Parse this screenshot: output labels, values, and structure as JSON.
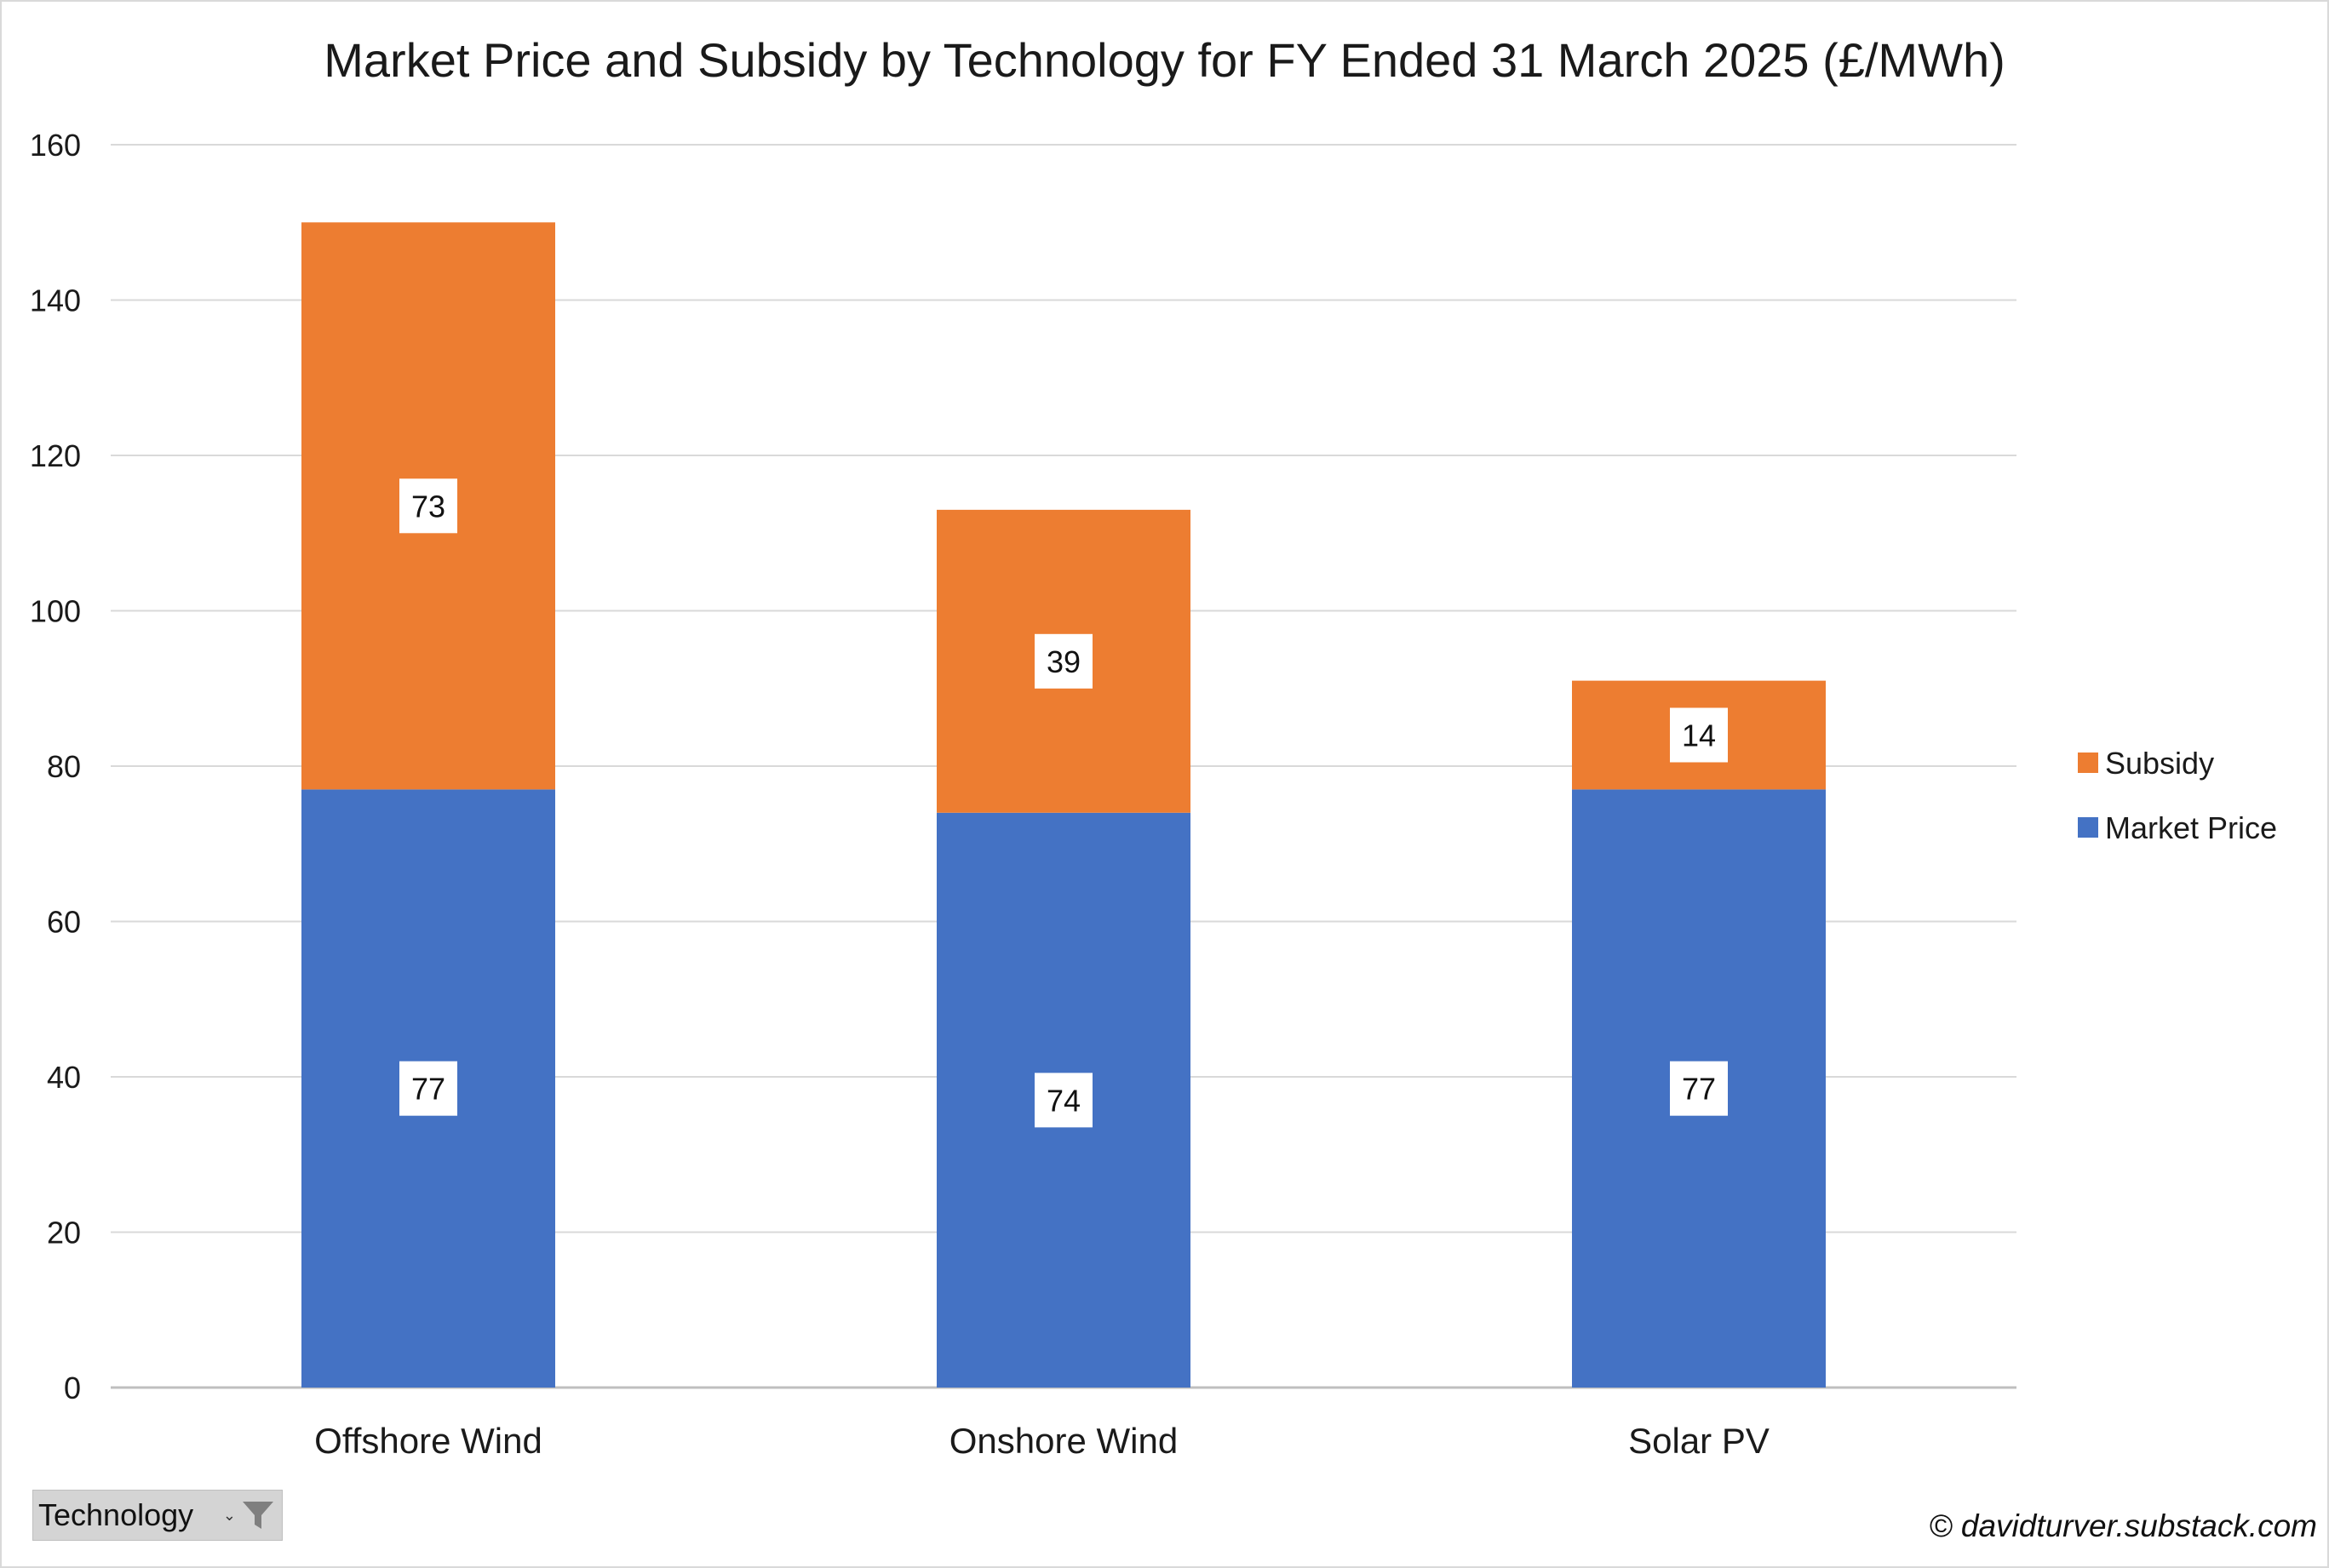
{
  "chart_data": {
    "type": "bar",
    "stacked": true,
    "title": "Market Price and Subsidy by Technology for FY Ended 31 March 2025 (£/MWh)",
    "categories": [
      "Offshore Wind",
      "Onshore Wind",
      "Solar PV"
    ],
    "series": [
      {
        "name": "Market Price",
        "values": [
          77,
          74,
          77
        ],
        "color": "#4472c4"
      },
      {
        "name": "Subsidy",
        "values": [
          73,
          39,
          14
        ],
        "color": "#ed7d31"
      }
    ],
    "ylim": [
      0,
      160
    ],
    "yticks": [
      0,
      20,
      40,
      60,
      80,
      100,
      120,
      140,
      160
    ],
    "grid": true,
    "legend": "right",
    "legend_order": [
      "Subsidy",
      "Market Price"
    ]
  },
  "filter": {
    "label": "Technology",
    "arrow": "⌄",
    "icon": "filter-funnel-icon"
  },
  "credit": "© davidturver.substack.com",
  "colors": {
    "gridline": "#d9d9d9",
    "axis": "#bfbfbf",
    "text": "#1a1a1a"
  }
}
